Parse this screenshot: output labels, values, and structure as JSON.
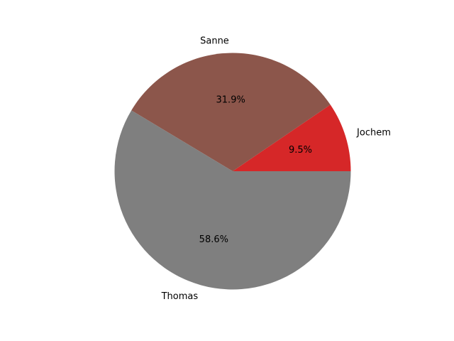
{
  "chart_data": {
    "type": "pie",
    "title": "",
    "slices": [
      {
        "label": "Jochem",
        "value": 9.5,
        "pct_label": "9.5%",
        "color": "#d62728"
      },
      {
        "label": "Sanne",
        "value": 31.9,
        "pct_label": "31.9%",
        "color": "#8c564b"
      },
      {
        "label": "Thomas",
        "value": 58.6,
        "pct_label": "58.6%",
        "color": "#7f7f7f"
      }
    ],
    "start_angle_deg": 0,
    "direction": "counterclockwise",
    "legend": "none"
  }
}
